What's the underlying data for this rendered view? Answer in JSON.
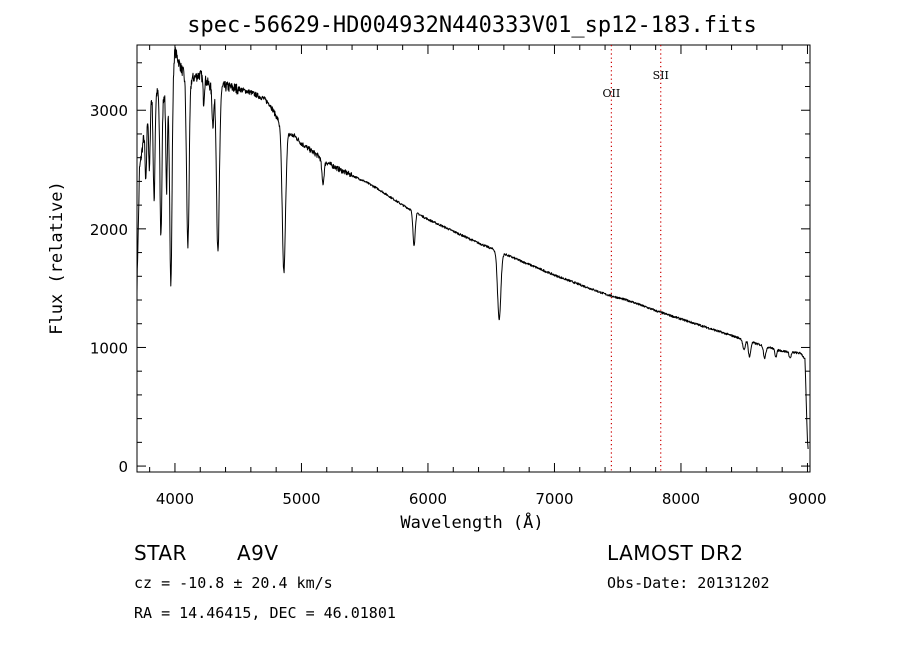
{
  "chart_data": {
    "type": "line",
    "title": "spec-56629-HD004932N440333V01_sp12-183.fits",
    "xlabel": "Wavelength (Å)",
    "ylabel": "Flux (relative)",
    "xlim": [
      3700,
      9020
    ],
    "ylim": [
      -50,
      3550
    ],
    "x_ticks": [
      4000,
      5000,
      6000,
      7000,
      8000,
      9000
    ],
    "y_ticks": [
      0,
      1000,
      2000,
      3000
    ],
    "grid": false,
    "series": [
      {
        "name": "flux",
        "continuum": {
          "x": [
            3700,
            3720,
            3750,
            3800,
            3850,
            3900,
            3950,
            4000,
            4050,
            4100,
            4200,
            4300,
            4400,
            4500,
            4600,
            4700,
            4750,
            4800,
            4850,
            4900,
            4950,
            5000,
            5100,
            5200,
            5300,
            5400,
            5500,
            5600,
            5700,
            5800,
            5900,
            6000,
            6200,
            6400,
            6600,
            6800,
            7000,
            7200,
            7400,
            7600,
            7800,
            8000,
            8200,
            8400,
            8600,
            8800,
            8950,
            8980,
            9000,
            9020
          ],
          "y": [
            1500,
            2500,
            2750,
            3100,
            3150,
            3150,
            3100,
            3500,
            3350,
            3250,
            3300,
            3180,
            3200,
            3180,
            3150,
            3100,
            3050,
            2950,
            2850,
            2800,
            2780,
            2720,
            2640,
            2560,
            2500,
            2450,
            2400,
            2340,
            2270,
            2200,
            2140,
            2080,
            1980,
            1880,
            1790,
            1700,
            1610,
            1530,
            1450,
            1390,
            1310,
            1240,
            1170,
            1100,
            1030,
            970,
            950,
            900,
            200,
            0
          ]
        },
        "absorption_lines": [
          {
            "x": 3770,
            "depth": 500,
            "width": 6
          },
          {
            "x": 3798,
            "depth": 600,
            "width": 6
          },
          {
            "x": 3835,
            "depth": 900,
            "width": 7
          },
          {
            "x": 3889,
            "depth": 1200,
            "width": 8
          },
          {
            "x": 3934,
            "depth": 800,
            "width": 6
          },
          {
            "x": 3968,
            "depth": 1700,
            "width": 9
          },
          {
            "x": 4102,
            "depth": 1400,
            "width": 10
          },
          {
            "x": 4227,
            "depth": 200,
            "width": 5
          },
          {
            "x": 4300,
            "depth": 300,
            "width": 7
          },
          {
            "x": 4340,
            "depth": 1400,
            "width": 11
          },
          {
            "x": 4861,
            "depth": 1200,
            "width": 13
          },
          {
            "x": 5170,
            "depth": 200,
            "width": 9
          },
          {
            "x": 5890,
            "depth": 280,
            "width": 9
          },
          {
            "x": 6563,
            "depth": 570,
            "width": 13
          },
          {
            "x": 8498,
            "depth": 90,
            "width": 9
          },
          {
            "x": 8542,
            "depth": 130,
            "width": 9
          },
          {
            "x": 8662,
            "depth": 100,
            "width": 9
          },
          {
            "x": 8750,
            "depth": 60,
            "width": 8
          },
          {
            "x": 8863,
            "depth": 50,
            "width": 8
          }
        ]
      }
    ],
    "markers": [
      {
        "label": "OII",
        "x": 7450
      },
      {
        "label": "SII",
        "x": 7840
      }
    ]
  },
  "info": {
    "object_type": "STAR",
    "spectral_class": "A9V",
    "survey": "LAMOST DR2",
    "redshift": "cz = -10.8 ± 20.4 km/s",
    "obs_date": "Obs-Date: 20131202",
    "coords": "RA =  14.46415, DEC =  46.01801"
  },
  "colors": {
    "line": "#000000",
    "marker": "#cc0000",
    "background": "#ffffff"
  }
}
